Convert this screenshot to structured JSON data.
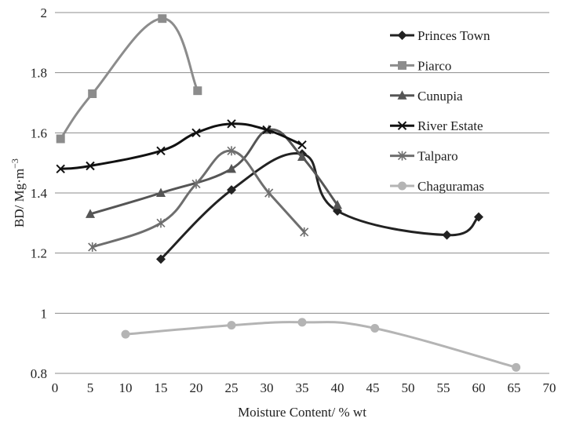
{
  "chart_data": {
    "type": "line",
    "title": "",
    "xlabel": "Moisture Content/ % wt",
    "ylabel_parts": {
      "main": "BD/ Mg·m",
      "sup": "−3"
    },
    "xlim": [
      0,
      70
    ],
    "ylim": [
      0.8,
      2.0
    ],
    "xticks": [
      "0",
      "5",
      "10",
      "15",
      "20",
      "25",
      "30",
      "35",
      "40",
      "45",
      "50",
      "55",
      "60",
      "65",
      "70"
    ],
    "yticks": [
      "0.8",
      "1",
      "1.2",
      "1.4",
      "1.6",
      "1.8",
      "2"
    ],
    "xtick_values": [
      0,
      5,
      10,
      15,
      20,
      25,
      30,
      35,
      40,
      45,
      50,
      55,
      60,
      65,
      70
    ],
    "ytick_values": [
      0.8,
      1.0,
      1.2,
      1.4,
      1.6,
      1.8,
      2.0
    ],
    "grid": "horizontal",
    "legend_position": "top-right",
    "series": [
      {
        "name": "Princes Town",
        "color": "#222222",
        "marker": "diamond",
        "points": [
          [
            15,
            1.18
          ],
          [
            25,
            1.41
          ],
          [
            35,
            1.53
          ],
          [
            40,
            1.34
          ],
          [
            55.5,
            1.26
          ],
          [
            60,
            1.32
          ]
        ]
      },
      {
        "name": "Piarco",
        "color": "#8c8c8c",
        "marker": "square",
        "points": [
          [
            0.8,
            1.58
          ],
          [
            5.3,
            1.73
          ],
          [
            15.2,
            1.98
          ],
          [
            20.2,
            1.74
          ]
        ]
      },
      {
        "name": "Cunupia",
        "color": "#555555",
        "marker": "triangle",
        "points": [
          [
            5,
            1.33
          ],
          [
            15,
            1.4
          ],
          [
            25,
            1.48
          ],
          [
            30.3,
            1.61
          ],
          [
            35,
            1.52
          ],
          [
            40,
            1.36
          ]
        ]
      },
      {
        "name": "River Estate",
        "color": "#111111",
        "marker": "x",
        "points": [
          [
            0.8,
            1.48
          ],
          [
            5,
            1.49
          ],
          [
            15,
            1.54
          ],
          [
            20,
            1.6
          ],
          [
            25,
            1.63
          ],
          [
            30,
            1.61
          ],
          [
            35,
            1.56
          ]
        ]
      },
      {
        "name": "Talparo",
        "color": "#6e6e6e",
        "marker": "star",
        "points": [
          [
            5.3,
            1.22
          ],
          [
            15,
            1.3
          ],
          [
            20,
            1.43
          ],
          [
            25,
            1.54
          ],
          [
            30.3,
            1.4
          ],
          [
            35.3,
            1.27
          ]
        ]
      },
      {
        "name": "Chaguramas",
        "color": "#b4b4b4",
        "marker": "circle",
        "points": [
          [
            10,
            0.93
          ],
          [
            25,
            0.96
          ],
          [
            35,
            0.97
          ],
          [
            45.3,
            0.95
          ],
          [
            65.3,
            0.82
          ]
        ]
      }
    ]
  }
}
